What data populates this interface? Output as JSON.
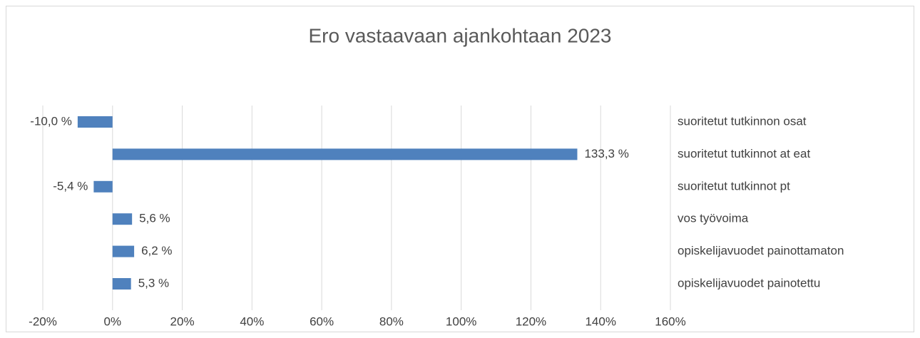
{
  "chart_data": {
    "type": "bar",
    "orientation": "horizontal",
    "title": "Ero vastaavaan ajankohtaan 2023",
    "categories": [
      "suoritetut tutkinnon osat",
      "suoritetut tutkinnot at eat",
      "suoritetut tutkinnot pt",
      "vos työvoima",
      "opiskelijavuodet painottamaton",
      "opiskelijavuodet painotettu"
    ],
    "values": [
      -10.0,
      133.3,
      -5.4,
      5.6,
      6.2,
      5.3
    ],
    "value_labels": [
      "-10,0 %",
      "133,3 %",
      "-5,4 %",
      "5,6 %",
      "6,2 %",
      "5,3 %"
    ],
    "color": "#4f81bd",
    "xlim": [
      -20,
      160
    ],
    "xticks": [
      {
        "value": -20,
        "label": "-20%"
      },
      {
        "value": 0,
        "label": "0%"
      },
      {
        "value": 20,
        "label": "20%"
      },
      {
        "value": 40,
        "label": "40%"
      },
      {
        "value": 60,
        "label": "60%"
      },
      {
        "value": 80,
        "label": "80%"
      },
      {
        "value": 100,
        "label": "100%"
      },
      {
        "value": 120,
        "label": "120%"
      },
      {
        "value": 140,
        "label": "140%"
      },
      {
        "value": 160,
        "label": "160%"
      }
    ],
    "grid": true
  }
}
